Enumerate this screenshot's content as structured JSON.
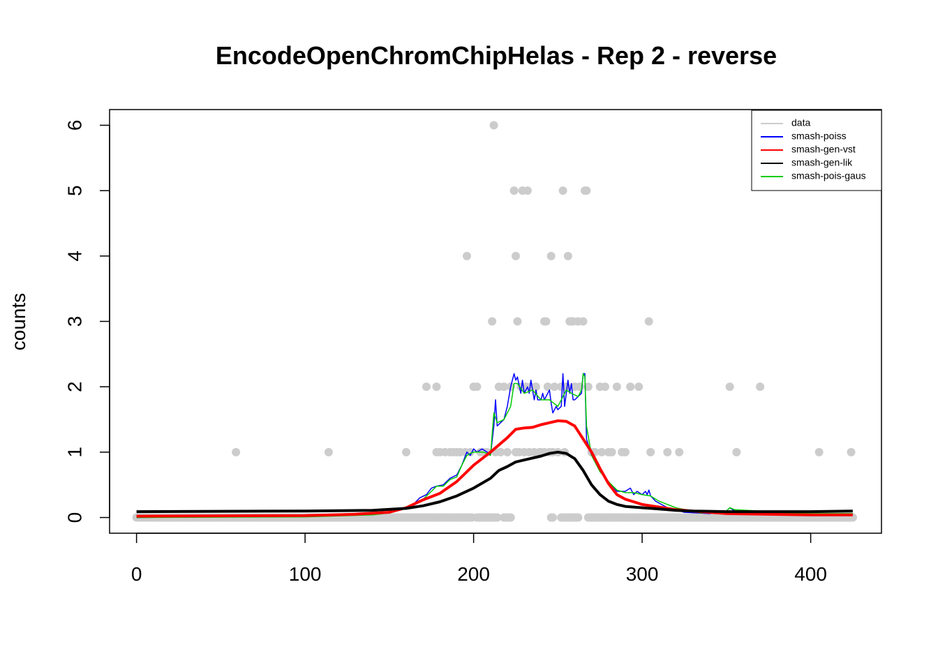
{
  "chart_data": {
    "type": "scatter",
    "title": "EncodeOpenChromChipHelas - Rep 2 - reverse",
    "xlabel": "",
    "ylabel": "counts",
    "xlim": [
      -16,
      442
    ],
    "ylim": [
      -0.24,
      6.24
    ],
    "x_ticks": [
      0,
      100,
      200,
      300,
      400
    ],
    "y_ticks": [
      0,
      1,
      2,
      3,
      4,
      5,
      6
    ],
    "x_tick_labels": [
      "0",
      "100",
      "200",
      "300",
      "400"
    ],
    "y_tick_labels": [
      "0",
      "1",
      "2",
      "3",
      "4",
      "5",
      "6"
    ],
    "legend_position": "top-right",
    "legend": [
      {
        "label": "data",
        "color": "#cccccc"
      },
      {
        "label": "smash-poiss",
        "color": "#0000ff"
      },
      {
        "label": "smash-gen-vst",
        "color": "#ff0000"
      },
      {
        "label": "smash-gen-lik",
        "color": "#000000"
      },
      {
        "label": "smash-pois-gaus",
        "color": "#00cc00"
      }
    ],
    "data_points": {
      "name": "data",
      "color": "#cccccc",
      "nonzero": [
        [
          59,
          1
        ],
        [
          114,
          1
        ],
        [
          160,
          1
        ],
        [
          172,
          2
        ],
        [
          178,
          2
        ],
        [
          178,
          1
        ],
        [
          180,
          1
        ],
        [
          183,
          1
        ],
        [
          186,
          1
        ],
        [
          188,
          1
        ],
        [
          190,
          1
        ],
        [
          192,
          1
        ],
        [
          195,
          1
        ],
        [
          196,
          4
        ],
        [
          198,
          1
        ],
        [
          200,
          2
        ],
        [
          202,
          2
        ],
        [
          204,
          1
        ],
        [
          206,
          1
        ],
        [
          208,
          1
        ],
        [
          211,
          3
        ],
        [
          212,
          6
        ],
        [
          213,
          1
        ],
        [
          215,
          2
        ],
        [
          216,
          1
        ],
        [
          218,
          2
        ],
        [
          220,
          1
        ],
        [
          222,
          2
        ],
        [
          224,
          5
        ],
        [
          225,
          1
        ],
        [
          225,
          4
        ],
        [
          226,
          3
        ],
        [
          227,
          1
        ],
        [
          228,
          2
        ],
        [
          229,
          5
        ],
        [
          230,
          1
        ],
        [
          231,
          2
        ],
        [
          232,
          5
        ],
        [
          233,
          1
        ],
        [
          234,
          2
        ],
        [
          236,
          1
        ],
        [
          237,
          2
        ],
        [
          239,
          1
        ],
        [
          240,
          1
        ],
        [
          242,
          3
        ],
        [
          242,
          1
        ],
        [
          243,
          3
        ],
        [
          244,
          2
        ],
        [
          245,
          1
        ],
        [
          246,
          4
        ],
        [
          247,
          1
        ],
        [
          248,
          2
        ],
        [
          250,
          1
        ],
        [
          252,
          2
        ],
        [
          253,
          5
        ],
        [
          254,
          1
        ],
        [
          255,
          2
        ],
        [
          256,
          4
        ],
        [
          257,
          3
        ],
        [
          258,
          3
        ],
        [
          259,
          3
        ],
        [
          260,
          2
        ],
        [
          262,
          3
        ],
        [
          263,
          2
        ],
        [
          265,
          3
        ],
        [
          266,
          5
        ],
        [
          267,
          5
        ],
        [
          268,
          2
        ],
        [
          270,
          1
        ],
        [
          272,
          1
        ],
        [
          275,
          2
        ],
        [
          276,
          1
        ],
        [
          278,
          2
        ],
        [
          280,
          1
        ],
        [
          282,
          1
        ],
        [
          285,
          2
        ],
        [
          288,
          1
        ],
        [
          290,
          1
        ],
        [
          293,
          2
        ],
        [
          298,
          2
        ],
        [
          304,
          3
        ],
        [
          305,
          1
        ],
        [
          315,
          1
        ],
        [
          322,
          1
        ],
        [
          352,
          2
        ],
        [
          356,
          1
        ],
        [
          370,
          2
        ],
        [
          405,
          1
        ],
        [
          424,
          1
        ]
      ],
      "zero_ranges": [
        [
          0,
          199
        ],
        [
          202,
          214
        ],
        [
          218,
          222
        ],
        [
          246,
          247
        ],
        [
          252,
          262
        ],
        [
          268,
          425
        ]
      ]
    },
    "series": [
      {
        "name": "smash-poiss",
        "color": "#0000ff",
        "width": 1.5,
        "x": [
          0,
          100,
          140,
          150,
          160,
          165,
          168,
          172,
          175,
          178,
          182,
          186,
          190,
          193,
          196,
          198,
          200,
          202,
          205,
          208,
          210,
          212,
          213,
          214,
          216,
          218,
          220,
          222,
          224,
          225,
          226,
          228,
          229,
          230,
          231,
          232,
          233,
          234,
          236,
          237,
          238,
          240,
          241,
          242,
          243,
          245,
          246,
          247,
          249,
          250,
          252,
          253,
          254,
          256,
          257,
          258,
          259,
          260,
          262,
          264,
          265,
          266,
          267,
          270,
          275,
          280,
          285,
          290,
          293,
          295,
          297,
          300,
          302,
          303,
          304,
          305,
          308,
          315,
          325,
          340,
          350,
          352,
          355,
          370,
          380,
          400,
          425
        ],
        "y": [
          0.0,
          0.02,
          0.05,
          0.08,
          0.15,
          0.22,
          0.3,
          0.35,
          0.45,
          0.48,
          0.5,
          0.6,
          0.65,
          0.8,
          1.0,
          0.95,
          1.05,
          1.0,
          1.05,
          1.0,
          0.95,
          1.4,
          1.8,
          1.4,
          1.45,
          1.5,
          1.7,
          2.0,
          2.2,
          2.1,
          2.15,
          1.9,
          2.1,
          1.9,
          1.95,
          2.0,
          1.9,
          2.1,
          1.8,
          1.95,
          1.8,
          1.8,
          1.9,
          1.8,
          1.85,
          1.95,
          1.75,
          1.6,
          1.7,
          1.65,
          1.7,
          2.2,
          1.7,
          2.1,
          1.9,
          2.05,
          1.8,
          1.8,
          1.85,
          1.9,
          2.2,
          2.2,
          1.2,
          0.95,
          0.75,
          0.55,
          0.4,
          0.4,
          0.45,
          0.35,
          0.4,
          0.35,
          0.4,
          0.35,
          0.42,
          0.33,
          0.25,
          0.15,
          0.08,
          0.06,
          0.1,
          0.15,
          0.1,
          0.1,
          0.08,
          0.05,
          0.05
        ]
      },
      {
        "name": "smash-pois-gaus",
        "color": "#00cc00",
        "width": 1.5,
        "x": [
          0,
          100,
          140,
          150,
          160,
          165,
          170,
          175,
          178,
          182,
          186,
          190,
          193,
          196,
          198,
          200,
          203,
          206,
          210,
          212,
          214,
          218,
          222,
          224,
          226,
          230,
          235,
          240,
          245,
          250,
          255,
          258,
          262,
          264,
          265,
          266,
          267,
          270,
          275,
          280,
          285,
          290,
          295,
          300,
          305,
          310,
          320,
          335,
          350,
          352,
          355,
          370,
          380,
          400,
          425
        ],
        "y": [
          0.0,
          0.01,
          0.04,
          0.07,
          0.14,
          0.2,
          0.28,
          0.4,
          0.48,
          0.48,
          0.58,
          0.62,
          0.8,
          0.95,
          0.98,
          1.0,
          1.0,
          1.0,
          0.95,
          1.6,
          1.45,
          1.5,
          1.7,
          2.05,
          2.05,
          1.9,
          1.95,
          1.8,
          1.8,
          1.7,
          1.95,
          1.9,
          1.85,
          1.95,
          2.2,
          2.15,
          1.4,
          0.95,
          0.7,
          0.55,
          0.42,
          0.38,
          0.38,
          0.35,
          0.33,
          0.25,
          0.15,
          0.07,
          0.1,
          0.15,
          0.12,
          0.1,
          0.07,
          0.06,
          0.06
        ]
      },
      {
        "name": "smash-gen-vst",
        "color": "#ff0000",
        "width": 4,
        "x": [
          0,
          100,
          130,
          150,
          160,
          170,
          180,
          190,
          200,
          210,
          220,
          225,
          230,
          235,
          240,
          245,
          250,
          255,
          260,
          265,
          270,
          275,
          280,
          285,
          290,
          295,
          300,
          310,
          320,
          330,
          350,
          400,
          425
        ],
        "y": [
          0.02,
          0.03,
          0.05,
          0.08,
          0.15,
          0.27,
          0.37,
          0.55,
          0.8,
          1.0,
          1.22,
          1.35,
          1.37,
          1.38,
          1.42,
          1.45,
          1.48,
          1.47,
          1.4,
          1.2,
          1.0,
          0.75,
          0.52,
          0.35,
          0.28,
          0.24,
          0.2,
          0.16,
          0.12,
          0.1,
          0.06,
          0.04,
          0.04
        ]
      },
      {
        "name": "smash-gen-lik",
        "color": "#000000",
        "width": 4,
        "x": [
          0,
          100,
          140,
          160,
          170,
          180,
          190,
          200,
          210,
          215,
          220,
          225,
          230,
          240,
          245,
          250,
          255,
          260,
          265,
          270,
          275,
          280,
          285,
          290,
          300,
          310,
          320,
          330,
          350,
          400,
          425
        ],
        "y": [
          0.09,
          0.1,
          0.11,
          0.14,
          0.18,
          0.24,
          0.33,
          0.45,
          0.6,
          0.72,
          0.78,
          0.85,
          0.88,
          0.94,
          0.98,
          1.0,
          0.98,
          0.9,
          0.72,
          0.5,
          0.35,
          0.25,
          0.2,
          0.17,
          0.15,
          0.13,
          0.11,
          0.1,
          0.09,
          0.09,
          0.1
        ]
      }
    ]
  }
}
